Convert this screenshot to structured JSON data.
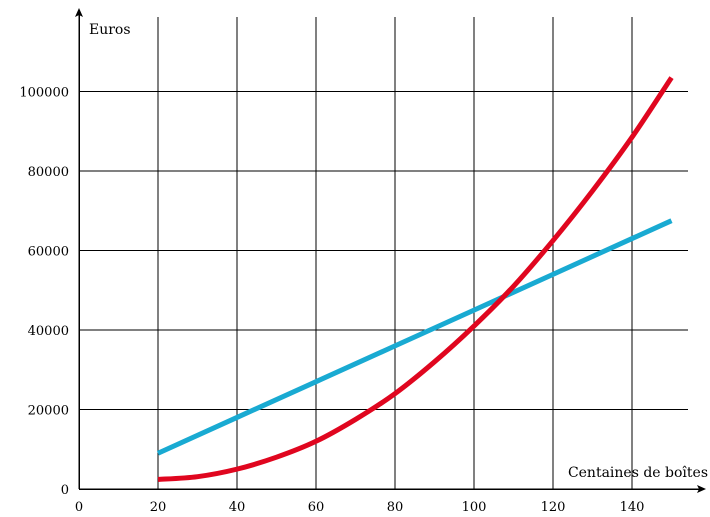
{
  "chart_data": {
    "type": "line",
    "title": "",
    "xlabel": "Centaines de boîtes",
    "ylabel": "Euros",
    "xlim": [
      0,
      155
    ],
    "ylim": [
      0,
      115000
    ],
    "x_ticks": [
      0,
      20,
      40,
      60,
      80,
      100,
      120,
      140
    ],
    "y_ticks": [
      0,
      20000,
      40000,
      60000,
      80000,
      100000
    ],
    "x_tick_labels": [
      "0",
      "20",
      "40",
      "60",
      "80",
      "100",
      "120",
      "140"
    ],
    "y_tick_labels": [
      "0",
      "20000",
      "40000",
      "60000",
      "80000",
      "100000"
    ],
    "grid": true,
    "series": [
      {
        "color": "#19aad2",
        "x": [
          20,
          40,
          60,
          80,
          100,
          120,
          140,
          150
        ],
        "y": [
          9000,
          18000,
          27000,
          36000,
          45000,
          54000,
          63000,
          67500
        ]
      },
      {
        "color": "#e0061f",
        "x": [
          20,
          30,
          40,
          50,
          60,
          70,
          80,
          90,
          100,
          110,
          120,
          130,
          140,
          150
        ],
        "y": [
          2400,
          3100,
          5000,
          8000,
          12000,
          17500,
          24000,
          32000,
          41000,
          51000,
          62500,
          75000,
          88500,
          103500
        ]
      }
    ]
  }
}
